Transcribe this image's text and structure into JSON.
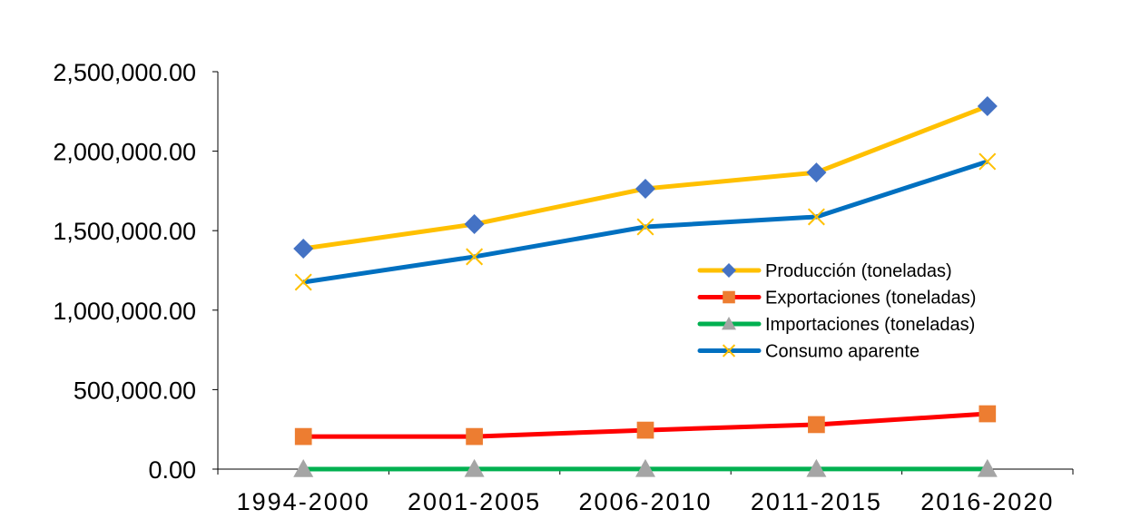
{
  "chart_data": {
    "type": "line",
    "title": "",
    "xlabel": "",
    "ylabel": "",
    "categories": [
      "1994-2000",
      "2001-2005",
      "2006-2010",
      "2011-2015",
      "2016-2020"
    ],
    "ylim": [
      0,
      2500000
    ],
    "yticks": [
      "0.00",
      "500,000.00",
      "1,000,000.00",
      "1,500,000.00",
      "2,000,000.00",
      "2,500,000.00"
    ],
    "grid": false,
    "legend": "center-right",
    "series": [
      {
        "name": "Producción (toneladas)",
        "values": [
          1387000,
          1541000,
          1764000,
          1866000,
          2283000
        ],
        "line_color": "#FFC000",
        "marker": "diamond",
        "marker_color": "#4472C4"
      },
      {
        "name": "Exportaciones (toneladas)",
        "values": [
          205000,
          205000,
          245000,
          280000,
          348000
        ],
        "line_color": "#FF0000",
        "marker": "square",
        "marker_color": "#ED7D31"
      },
      {
        "name": "Importaciones (toneladas)",
        "values": [
          0,
          1000,
          1000,
          1000,
          1000
        ],
        "line_color": "#00B050",
        "marker": "triangle",
        "marker_color": "#A5A5A5"
      },
      {
        "name": "Consumo aparente",
        "values": [
          1176000,
          1336000,
          1524000,
          1587000,
          1935000
        ],
        "line_color": "#0070C0",
        "marker": "x",
        "marker_color": "#FFC000"
      }
    ]
  }
}
